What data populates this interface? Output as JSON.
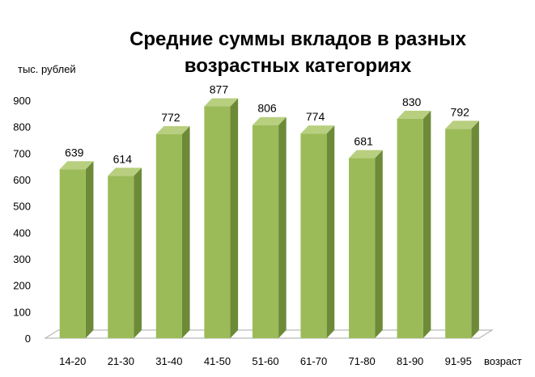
{
  "chart_data": {
    "type": "bar",
    "title_line1": "Средние суммы вкладов в разных",
    "title_line2": "возрастных категориях",
    "ylabel": "тыс. рублей",
    "xlabel": "возраст",
    "categories": [
      "14-20",
      "21-30",
      "31-40",
      "41-50",
      "51-60",
      "61-70",
      "71-80",
      "81-90",
      "91-95"
    ],
    "values": [
      639,
      614,
      772,
      877,
      806,
      774,
      681,
      830,
      792
    ],
    "ylim": [
      0,
      900
    ],
    "yticks": [
      "0",
      "100",
      "200",
      "300",
      "400",
      "500",
      "600",
      "700",
      "800",
      "900"
    ],
    "grid": false,
    "legend": "none",
    "bar_3d": true,
    "colors": {
      "bar_front": "#9bbb59",
      "bar_side": "#6d8a38",
      "bar_top": "#b8cf7f",
      "floor": "#ffffff",
      "floor_edge": "#aaaaaa"
    }
  }
}
